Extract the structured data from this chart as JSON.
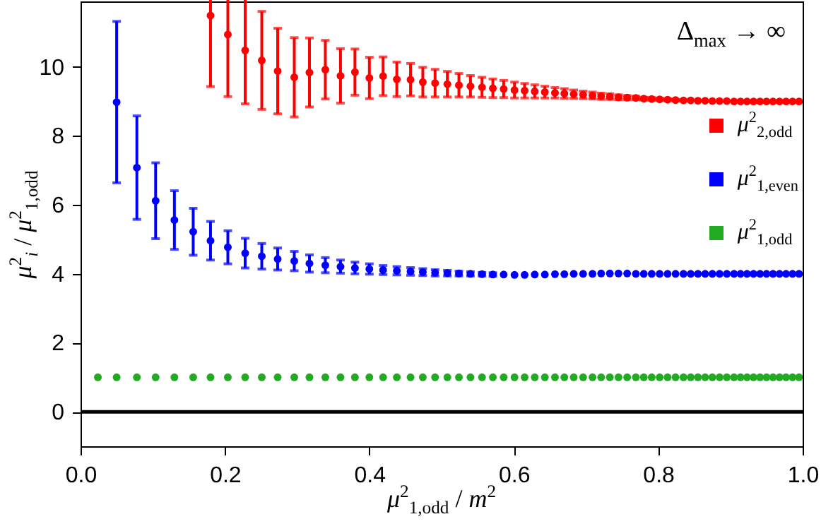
{
  "chart_data": {
    "type": "scatter",
    "xlabel": "μ$^{2}$$_{1,odd}$ / m$^{2}$",
    "ylabel": "μ$^{2}$$_{i}$ / μ$^{2}$$_{1,odd}$",
    "annotations": [
      "Δ$_{max}$ → ∞"
    ],
    "x": [
      0.024,
      0.05,
      0.078,
      0.104,
      0.13,
      0.156,
      0.18,
      0.204,
      0.228,
      0.251,
      0.273,
      0.296,
      0.317,
      0.339,
      0.36,
      0.38,
      0.4,
      0.419,
      0.438,
      0.457,
      0.474,
      0.491,
      0.508,
      0.524,
      0.54,
      0.556,
      0.571,
      0.586,
      0.601,
      0.615,
      0.629,
      0.643,
      0.657,
      0.67,
      0.683,
      0.696,
      0.709,
      0.721,
      0.733,
      0.745,
      0.757,
      0.769,
      0.78,
      0.791,
      0.802,
      0.813,
      0.824,
      0.835,
      0.845,
      0.855,
      0.865,
      0.875,
      0.885,
      0.895,
      0.905,
      0.914,
      0.923,
      0.932,
      0.941,
      0.95,
      0.959,
      0.968,
      0.977,
      0.986,
      0.995
    ],
    "series": [
      {
        "name": "μ$^{2}$$_{2,odd}$",
        "color": "#ff0000",
        "values": [
          null,
          null,
          null,
          null,
          null,
          null,
          11.49,
          10.94,
          10.48,
          10.19,
          9.88,
          9.7,
          9.84,
          9.92,
          9.74,
          9.85,
          9.68,
          9.73,
          9.64,
          9.63,
          9.56,
          9.53,
          9.5,
          9.47,
          9.44,
          9.41,
          9.38,
          9.36,
          9.33,
          9.31,
          9.29,
          9.27,
          9.25,
          9.23,
          9.21,
          9.19,
          9.17,
          9.15,
          9.14,
          9.12,
          9.11,
          9.1,
          9.08,
          9.07,
          9.06,
          9.05,
          9.04,
          9.03,
          9.03,
          9.02,
          9.02,
          9.01,
          9.01,
          9.01,
          9.0,
          9.0,
          9.0,
          9.0,
          9.0,
          9.0,
          9.0,
          9.0,
          9.0,
          9.0,
          9.0
        ],
        "errors": [
          null,
          null,
          null,
          null,
          null,
          null,
          2.06,
          1.8,
          1.55,
          1.42,
          1.24,
          1.15,
          1.0,
          0.85,
          0.79,
          0.67,
          0.6,
          0.56,
          0.5,
          0.47,
          0.43,
          0.4,
          0.37,
          0.34,
          0.31,
          0.29,
          0.27,
          0.25,
          0.23,
          0.21,
          0.19,
          0.17,
          0.15,
          0.14,
          0.12,
          0.11,
          0.1,
          0.09,
          0.08,
          0.07,
          0.06,
          0.05,
          0.04,
          0.04,
          0.03,
          0.03,
          0.02,
          0.02,
          null,
          null,
          null,
          null,
          null,
          null,
          null,
          null,
          null,
          null,
          null,
          null,
          null,
          null,
          null,
          null,
          null
        ]
      },
      {
        "name": "μ$^{2}$$_{1,even}$",
        "color": "#0000ff",
        "values": [
          null,
          8.98,
          7.08,
          6.12,
          5.56,
          5.22,
          4.96,
          4.77,
          4.6,
          4.51,
          4.43,
          4.37,
          4.3,
          4.25,
          4.21,
          4.17,
          4.14,
          4.11,
          4.09,
          4.07,
          4.05,
          4.03,
          4.02,
          4.01,
          4.0,
          3.99,
          3.98,
          3.98,
          3.97,
          3.97,
          3.98,
          3.98,
          3.99,
          3.99,
          4.0,
          4.0,
          4.0,
          4.01,
          4.01,
          4.01,
          4.01,
          4.0,
          4.0,
          4.0,
          4.0,
          4.0,
          4.0,
          4.0,
          4.0,
          4.0,
          4.0,
          4.0,
          4.0,
          4.0,
          4.0,
          4.0,
          4.0,
          4.0,
          4.0,
          4.0,
          4.0,
          4.0,
          4.0,
          4.0,
          4.0
        ],
        "errors": [
          null,
          2.34,
          1.5,
          1.1,
          0.85,
          0.68,
          0.56,
          0.48,
          0.43,
          0.37,
          0.32,
          0.28,
          0.25,
          0.22,
          0.19,
          0.17,
          0.15,
          0.13,
          0.12,
          0.11,
          0.1,
          0.09,
          0.08,
          0.07,
          0.06,
          0.05,
          0.05,
          null,
          null,
          null,
          null,
          null,
          null,
          null,
          null,
          null,
          null,
          null,
          null,
          null,
          null,
          null,
          null,
          null,
          null,
          null,
          null,
          null,
          null,
          null,
          null,
          null,
          null,
          null,
          null,
          null,
          null,
          null,
          null,
          null,
          null,
          null,
          null,
          null,
          null
        ]
      },
      {
        "name": "μ$^{2}$$_{1,odd}$",
        "color": "#22aa22",
        "values": [
          1.0,
          1.0,
          1.0,
          1.0,
          1.0,
          1.0,
          1.0,
          1.0,
          1.0,
          1.0,
          1.0,
          1.0,
          1.0,
          1.0,
          1.0,
          1.0,
          1.0,
          1.0,
          1.0,
          1.0,
          1.0,
          1.0,
          1.0,
          1.0,
          1.0,
          1.0,
          1.0,
          1.0,
          1.0,
          1.0,
          1.0,
          1.0,
          1.0,
          1.0,
          1.0,
          1.0,
          1.0,
          1.0,
          1.0,
          1.0,
          1.0,
          1.0,
          1.0,
          1.0,
          1.0,
          1.0,
          1.0,
          1.0,
          1.0,
          1.0,
          1.0,
          1.0,
          1.0,
          1.0,
          1.0,
          1.0,
          1.0,
          1.0,
          1.0,
          1.0,
          1.0,
          1.0,
          1.0,
          1.0,
          1.0
        ]
      }
    ],
    "xlim": [
      0,
      1
    ],
    "xticks": [
      {
        "value": 0,
        "label": "0.0"
      },
      0.2,
      0.4,
      0.6,
      0.8,
      {
        "value": 1,
        "label": "1.0"
      }
    ],
    "ylim": [
      -1,
      11.9
    ],
    "yticks": [
      0,
      2,
      4,
      6,
      8,
      10
    ],
    "ref_lines": [
      {
        "axis": "y",
        "value": 0,
        "color": "#000000"
      }
    ],
    "marker": "circle",
    "legend": "top right"
  }
}
